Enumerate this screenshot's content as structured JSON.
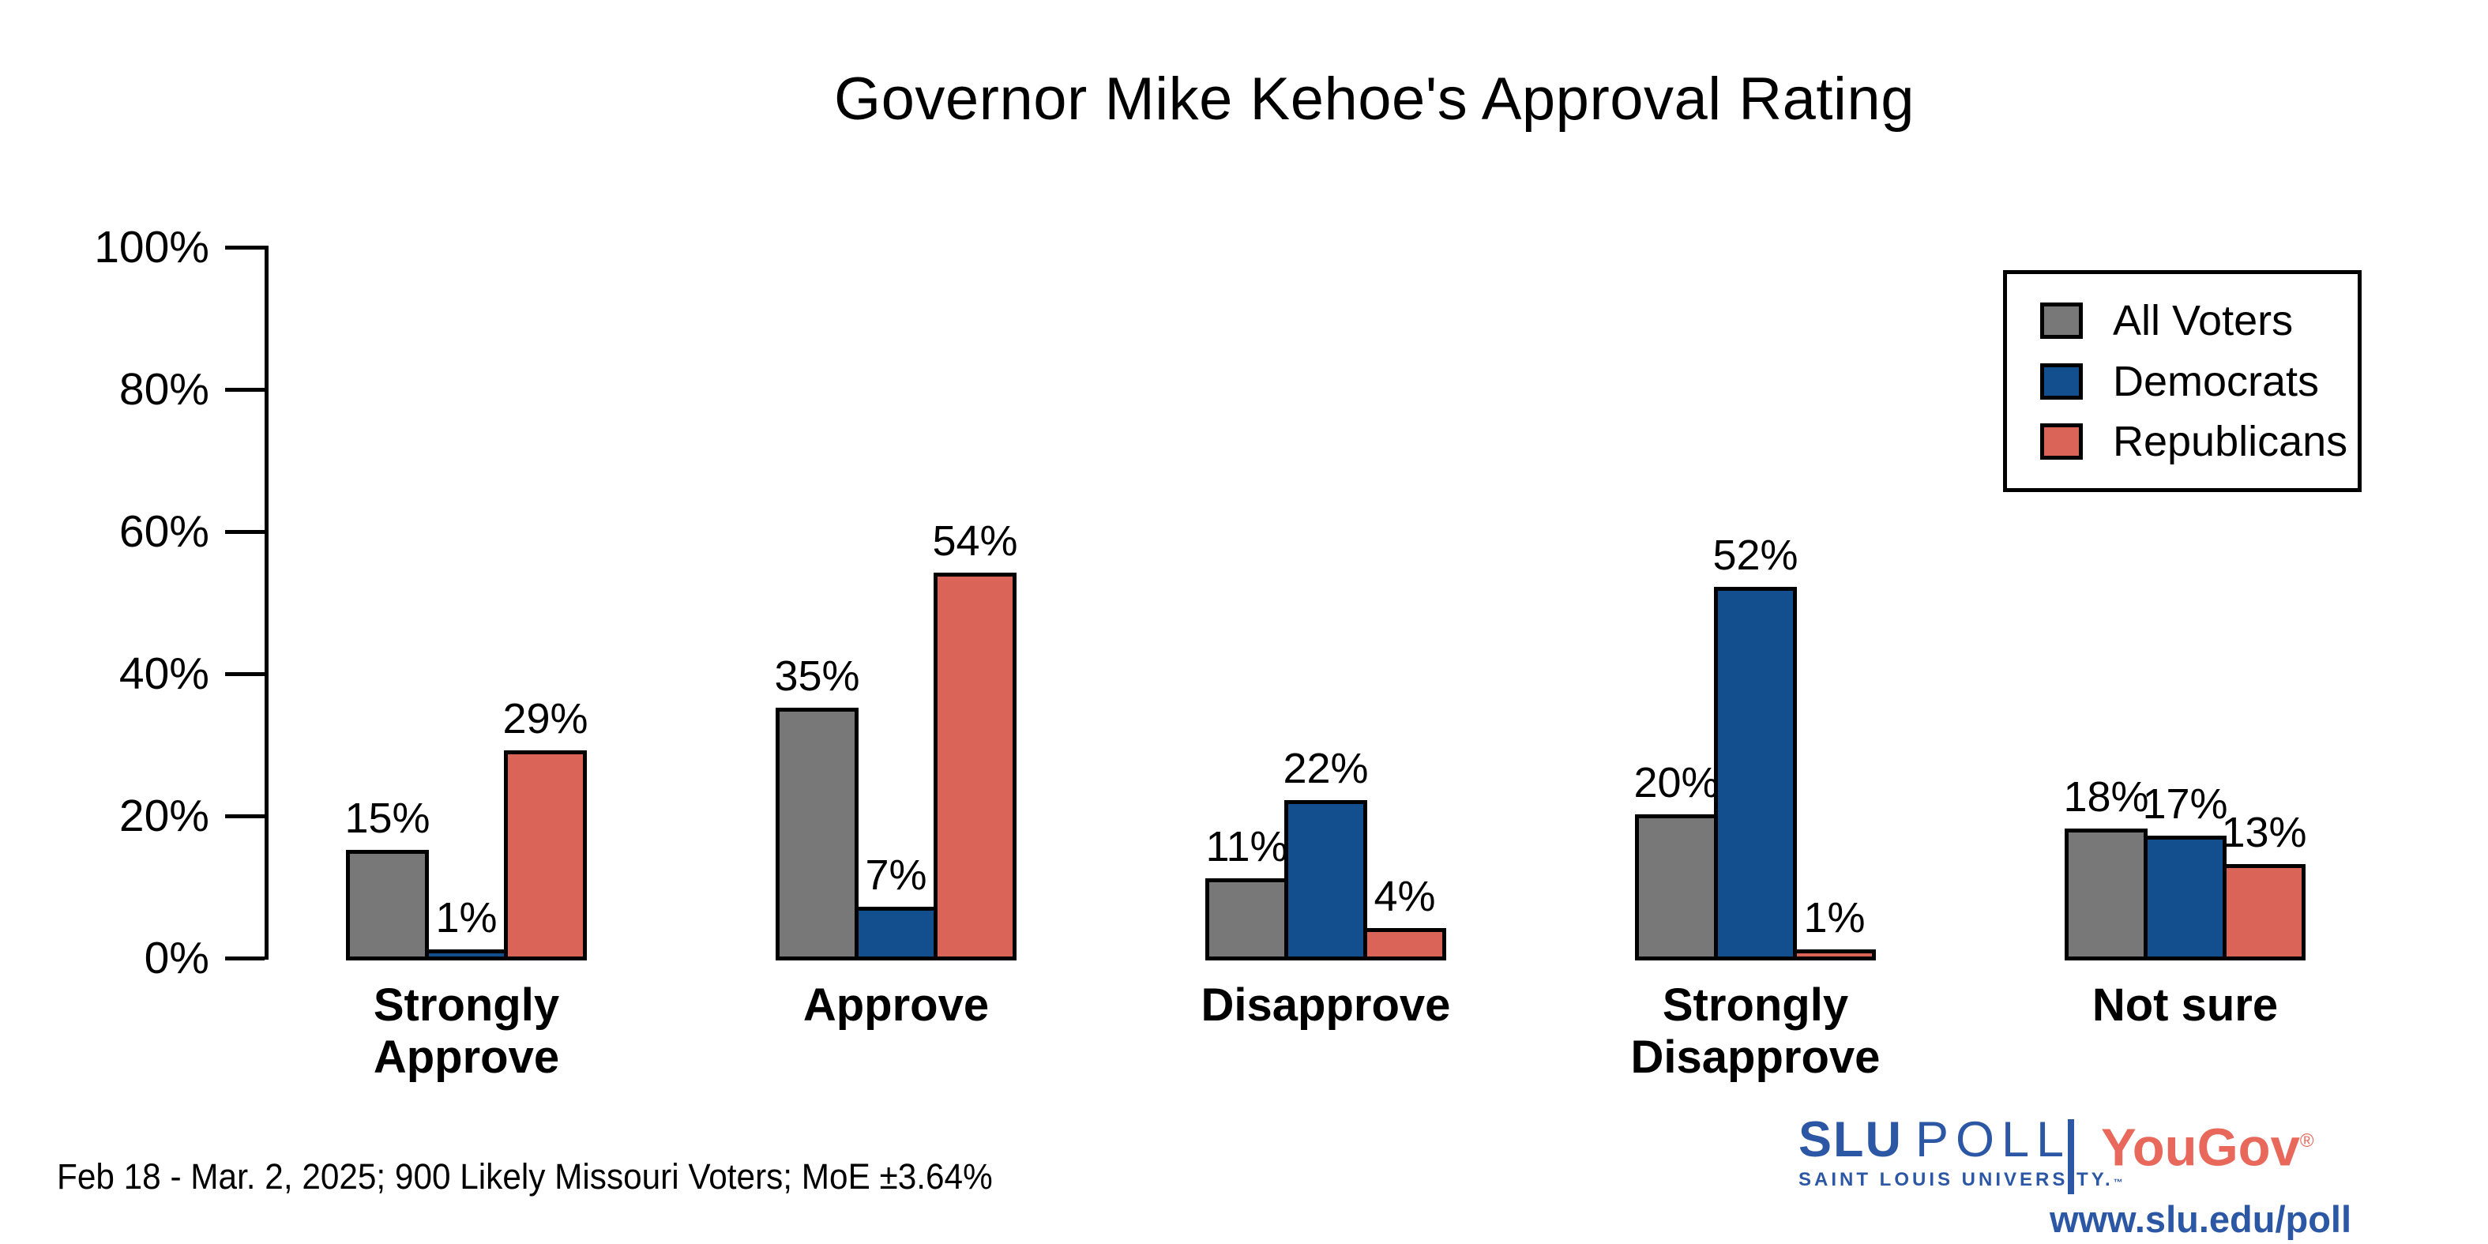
{
  "chart_data": {
    "type": "bar",
    "title": "Governor Mike Kehoe's Approval Rating",
    "categories": [
      "Strongly\nApprove",
      "Approve",
      "Disapprove",
      "Strongly\nDisapprove",
      "Not sure"
    ],
    "series": [
      {
        "name": "All Voters",
        "color": "#787878",
        "values": [
          15,
          35,
          11,
          20,
          18
        ]
      },
      {
        "name": "Democrats",
        "color": "#134f8e",
        "values": [
          1,
          7,
          22,
          52,
          17
        ]
      },
      {
        "name": "Republicans",
        "color": "#da6457",
        "values": [
          29,
          54,
          4,
          1,
          13
        ]
      }
    ],
    "value_suffix": "%",
    "ylim": [
      0,
      100
    ],
    "yticks": [
      {
        "label": "0%",
        "value": 0
      },
      {
        "label": "20%",
        "value": 20
      },
      {
        "label": "40%",
        "value": 40
      },
      {
        "label": "60%",
        "value": 60
      },
      {
        "label": "80%",
        "value": 80
      },
      {
        "label": "100%",
        "value": 100
      }
    ],
    "grid": false,
    "legend_position": "top-right",
    "bar_outline": "#000000"
  },
  "footer": {
    "note": "Feb 18 - Mar. 2, 2025; 900 Likely Missouri Voters; MoE ±3.64%"
  },
  "branding": {
    "slu": "SLU",
    "poll": "POLL",
    "slu_sub": "SAINT LOUIS UNIVERSITY.",
    "slu_tm": "™",
    "yougov": "YouGov",
    "registered": "®",
    "url": "www.slu.edu/poll",
    "slu_blue": "#2b57a4",
    "yougov_red": "#e8695c"
  }
}
